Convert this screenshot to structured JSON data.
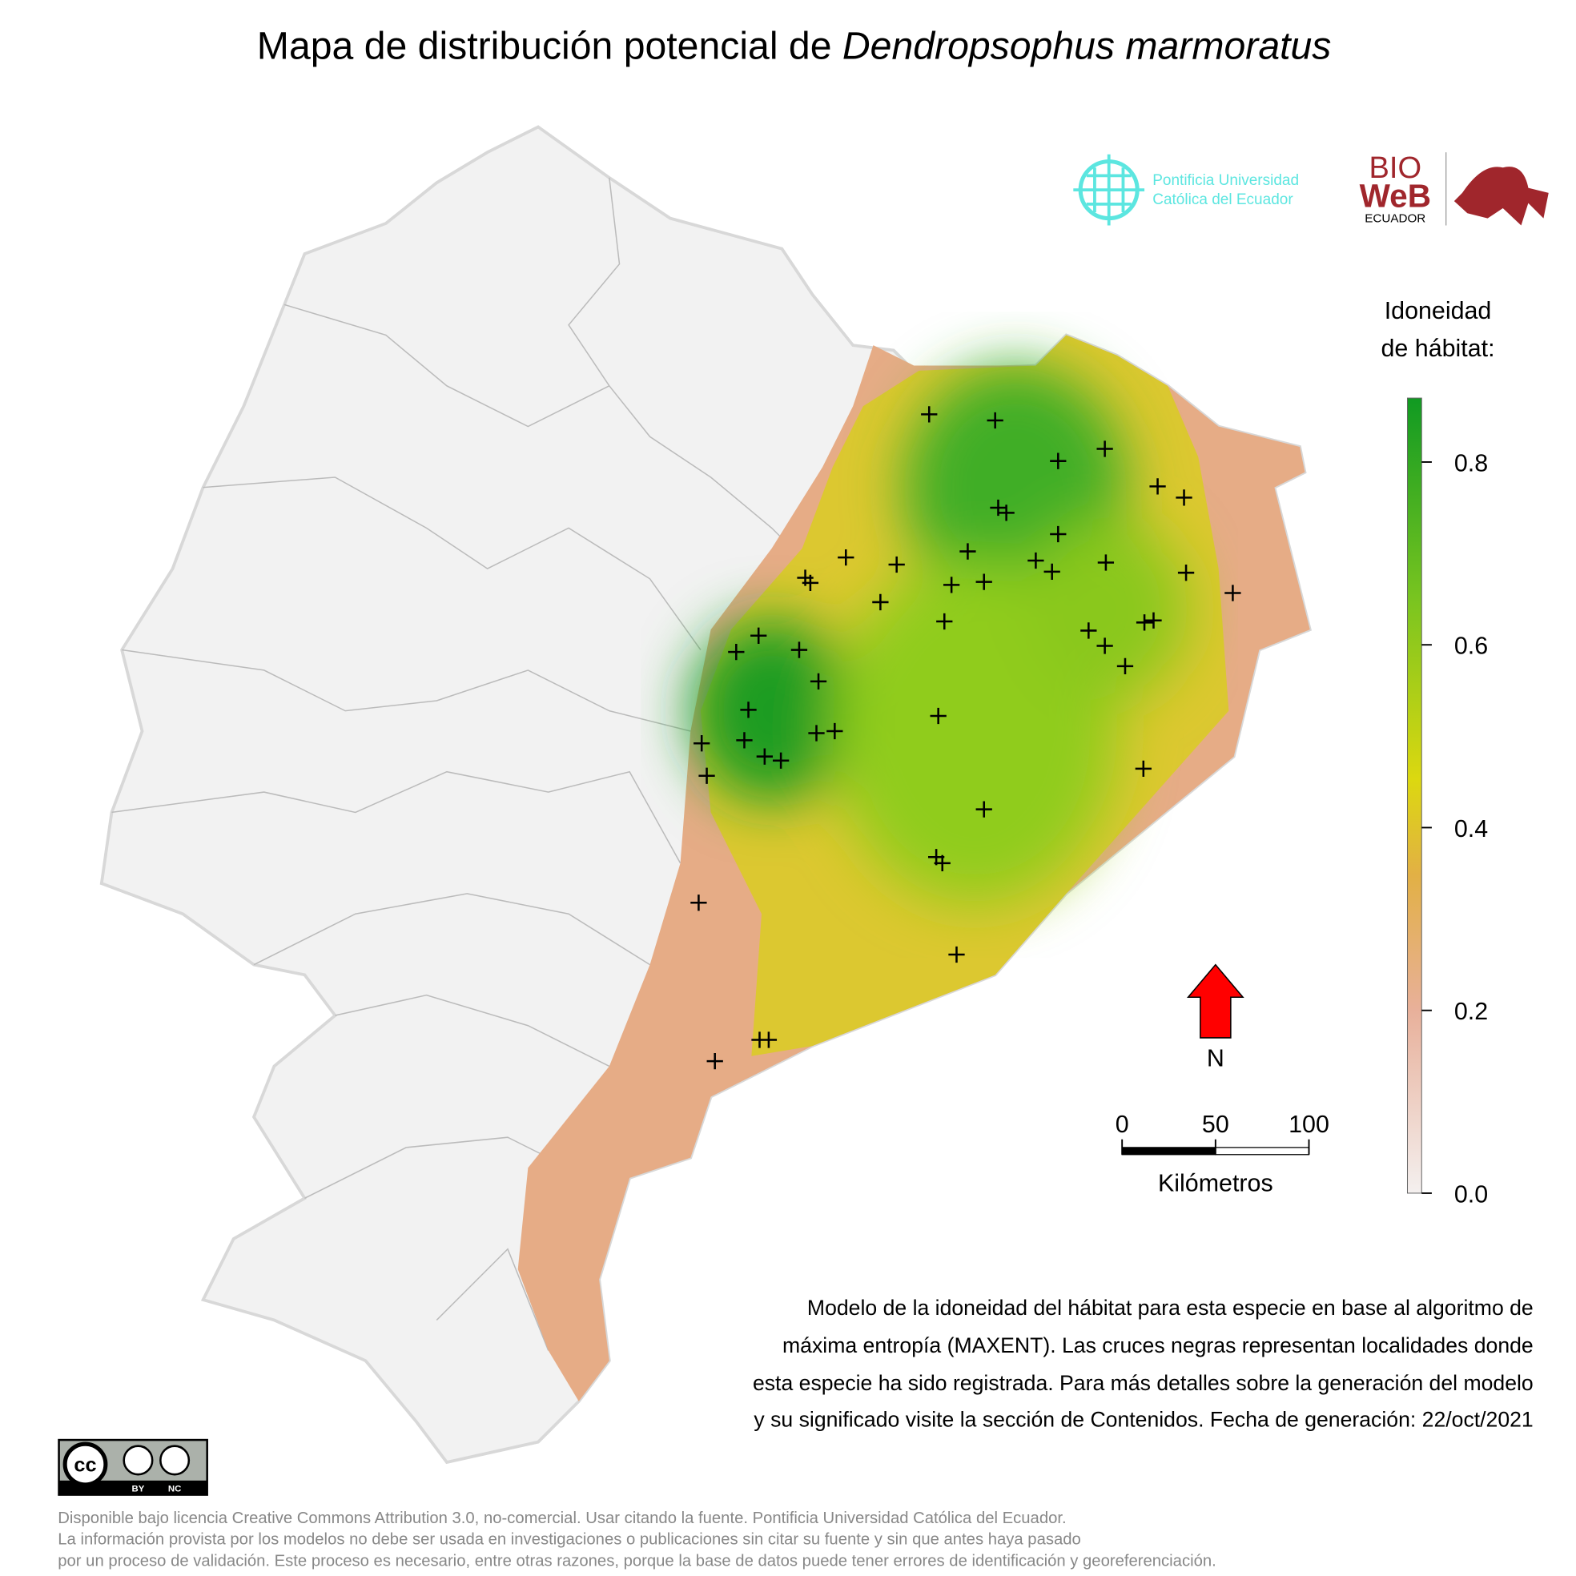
{
  "title": {
    "prefix": "Mapa de distribución potencial de ",
    "species": "Dendropsophus marmoratus"
  },
  "logos": {
    "puce": [
      "Pontificia Universidad",
      "Católica del Ecuador"
    ],
    "bioweb": [
      "BIO",
      "WeB",
      "ECUADOR"
    ]
  },
  "legend": {
    "title": [
      "Idoneidad",
      "de hábitat:"
    ],
    "lim": [
      0,
      0.87
    ],
    "ticks": [
      {
        "value": 0,
        "label": "0.0"
      },
      0.2,
      0.4,
      0.6,
      0.8
    ]
  },
  "north": "N",
  "scale_bar": {
    "lim": [
      0,
      100
    ],
    "ticks": [
      0,
      50,
      100
    ],
    "label": "Kilómetros"
  },
  "description": [
    "Modelo de la idoneidad del hábitat para esta especie en base al algoritmo de",
    "máxima entropía (MAXENT). Las cruces negras representan localidades donde",
    "esta especie ha sido registrada. Para más detalles sobre la generación del modelo",
    "y su significado visite la sección de Contenidos. Fecha de generación: 22/oct/2021"
  ],
  "license": {
    "badge": [
      "cc",
      "BY",
      "NC"
    ],
    "text": [
      "Disponible bajo licencia Creative Commons Attribution 3.0, no-comercial. Usar citando la fuente. Pontificia Universidad Católica del Ecuador.",
      "La información provista por los modelos no debe ser usada en investigaciones o publicaciones sin citar su fuente y sin que antes haya pasado",
      "por un proceso de validación. Este proceso es necesario, entre otras razones, porque la base de datos puede tener errores de identificación y georeferenciación."
    ]
  }
}
